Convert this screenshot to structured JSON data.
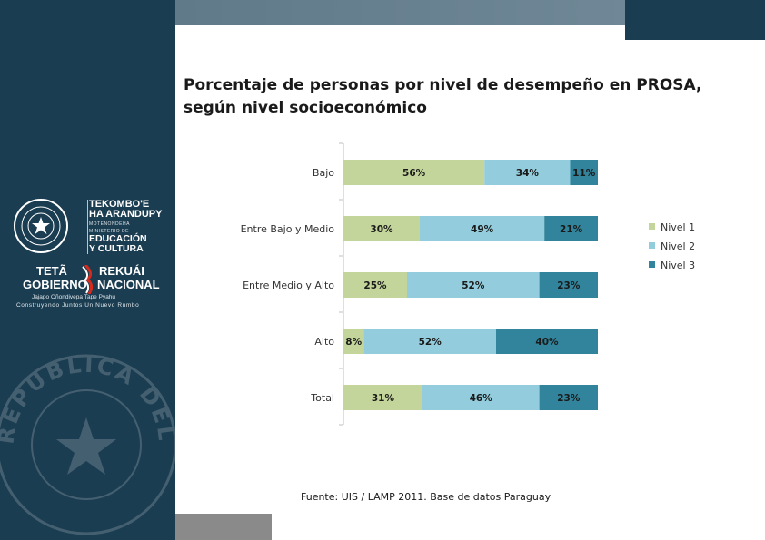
{
  "title": {
    "line1": "Porcentaje de personas por nivel de desempeño en PROSA,",
    "line2": "según nivel socioeconómico"
  },
  "source": "Fuente: UIS / LAMP 2011. Base de datos Paraguay",
  "logo": {
    "tekomboe_1": "TEKOMBO'E",
    "tekomboe_2": "HA ARANDUPY",
    "motenondeha": "MOTENONDEHA",
    "ministerio": "MINISTERIO DE",
    "educacion": "EDUCACIÓN",
    "cultura": "Y CULTURA",
    "teta": "TETÃ",
    "rekuai": "REKUÁI",
    "gobierno": "GOBIERNO",
    "nacional": "NACIONAL",
    "slogan1": "Jajapo Oñondivepa Tape Pyahu",
    "slogan2": "Construyendo Juntos Un Nuevo Rumbo",
    "seal_text": "REPUBLICA DEL PARAGUAY"
  },
  "colors": {
    "nivel1": "#c3d59b",
    "nivel2": "#93cddd",
    "nivel3": "#31849b",
    "sidebar": "#1b3d51"
  },
  "chart_data": {
    "type": "bar",
    "orientation": "horizontal",
    "stacked": true,
    "categories": [
      "Bajo",
      "Entre Bajo y Medio",
      "Entre Medio y Alto",
      "Alto",
      "Total"
    ],
    "series": [
      {
        "name": "Nivel 1",
        "values": [
          56,
          30,
          25,
          8,
          31
        ],
        "labels": [
          "56%",
          "30%",
          "25%",
          "8%",
          "31%"
        ]
      },
      {
        "name": "Nivel 2",
        "values": [
          34,
          49,
          52,
          52,
          46
        ],
        "labels": [
          "34%",
          "49%",
          "52%",
          "52%",
          "46%"
        ]
      },
      {
        "name": "Nivel 3",
        "values": [
          11,
          21,
          23,
          40,
          23
        ],
        "labels": [
          "11%",
          "21%",
          "23%",
          "40%",
          "23%"
        ]
      }
    ],
    "xlim": [
      0,
      100
    ],
    "legend": "right",
    "grid": false
  }
}
